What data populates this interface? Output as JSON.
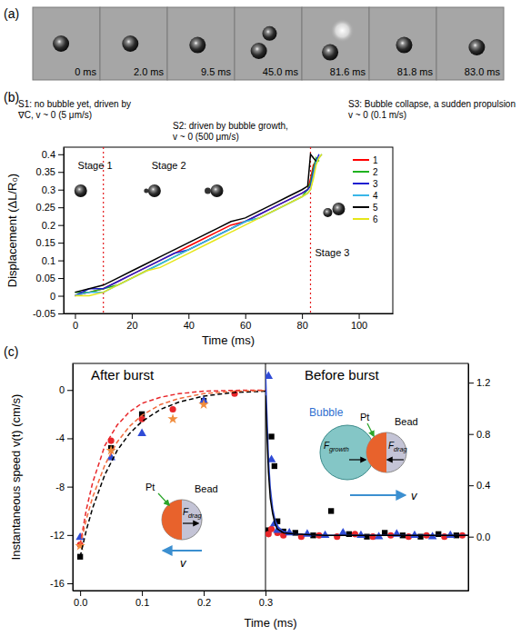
{
  "image_strip": {
    "panel_label": "(a)",
    "frames": [
      "0 ms",
      "2.0 ms",
      "9.5 ms",
      "45.0 ms",
      "81.6 ms",
      "81.8 ms",
      "83.0 ms"
    ]
  },
  "chart_data": [
    {
      "type": "line",
      "panel_label": "(b)",
      "x_label": "Time (ms)",
      "y_label": "Displacement (ΔL/R₀)",
      "x": [
        0,
        5,
        10,
        15,
        20,
        25,
        30,
        35,
        40,
        45,
        50,
        55,
        60,
        65,
        70,
        75,
        80,
        82,
        83,
        84,
        85,
        86,
        87
      ],
      "xlim": [
        -4,
        112
      ],
      "xticks": [
        0,
        20,
        40,
        60,
        80,
        100
      ],
      "ylim": [
        -0.05,
        0.42
      ],
      "yticks": [
        -0.05,
        0,
        0.05,
        0.1,
        0.15,
        0.2,
        0.25,
        0.3,
        0.35,
        0.4
      ],
      "legend": "upper right",
      "series": [
        {
          "name": "1",
          "color": "#ff0000",
          "values": [
            0,
            0.01,
            0.02,
            0.04,
            0.06,
            0.08,
            0.1,
            0.12,
            0.14,
            0.16,
            0.18,
            0.2,
            0.21,
            0.23,
            0.25,
            0.27,
            0.29,
            0.3,
            0.33,
            0.37,
            0.38,
            null,
            null
          ]
        },
        {
          "name": "2",
          "color": "#1fb21f",
          "values": [
            0.01,
            0.01,
            0.02,
            0.03,
            0.05,
            0.07,
            0.09,
            0.11,
            0.13,
            0.15,
            0.17,
            0.19,
            0.21,
            0.22,
            0.24,
            0.26,
            0.28,
            0.3,
            0.32,
            0.36,
            0.39,
            0.38,
            null
          ]
        },
        {
          "name": "3",
          "color": "#1f1fd0",
          "values": [
            0,
            0.02,
            0.02,
            0.04,
            0.06,
            0.08,
            0.1,
            0.12,
            0.13,
            0.15,
            0.17,
            0.19,
            0.21,
            0.23,
            0.25,
            0.27,
            0.29,
            0.3,
            0.31,
            0.35,
            0.38,
            0.4,
            null
          ]
        },
        {
          "name": "4",
          "color": "#39b6e8",
          "values": [
            0,
            0.01,
            0.01,
            0.03,
            0.05,
            0.07,
            0.09,
            0.11,
            0.13,
            0.15,
            0.17,
            0.19,
            0.21,
            0.22,
            0.24,
            0.26,
            0.28,
            0.29,
            0.3,
            0.34,
            0.38,
            0.39,
            0.4
          ]
        },
        {
          "name": "5",
          "color": "#000000",
          "values": [
            0.01,
            0.02,
            0.03,
            0.05,
            0.07,
            0.09,
            0.11,
            0.13,
            0.15,
            0.17,
            0.19,
            0.21,
            0.22,
            0.24,
            0.26,
            0.28,
            0.3,
            0.31,
            0.4,
            0.39,
            0.38,
            null,
            null
          ]
        },
        {
          "name": "6",
          "color": "#e6e619",
          "values": [
            0,
            0,
            0.01,
            0.03,
            0.05,
            0.07,
            0.08,
            0.1,
            0.12,
            0.14,
            0.16,
            0.18,
            0.2,
            0.22,
            0.24,
            0.26,
            0.28,
            0.29,
            0.3,
            0.33,
            0.37,
            0.39,
            0.4
          ]
        }
      ],
      "stage_lines": [
        10,
        83
      ],
      "stages": [
        {
          "label": "Stage 1",
          "note": [
            "S1: no bubble yet, driven by",
            "∇C, v ~ 0 (5 μm/s)"
          ]
        },
        {
          "label": "Stage 2",
          "note": [
            "S2: driven by bubble growth,",
            "v ~ 0 (500 μm/s)"
          ]
        },
        {
          "label": "Stage 3",
          "note": [
            "S3: Bubble collapse, a sudden propulsion",
            "v ~ 0 (0.1 m/s)"
          ]
        }
      ]
    },
    {
      "type": "scatter",
      "panel_label": "(c)",
      "title": "After burst",
      "x_label": "Time (ms)",
      "y_label": "Instantaneous speed v(t) (cm/s)",
      "xlim": [
        -0.012,
        0.3
      ],
      "xticks": [
        {
          "value": 0,
          "label": "0.0"
        },
        0.1,
        0.2,
        0.3
      ],
      "ylim": [
        -16.6,
        2.2
      ],
      "yticks": [
        -16,
        -12,
        -8,
        -4,
        0
      ],
      "series": [
        {
          "color": "#000000",
          "marker": "square",
          "x": [
            0,
            0.05,
            0.1,
            0.2
          ],
          "values": [
            -13.8,
            -4.8,
            -2,
            -0.9
          ]
        },
        {
          "color": "#e8262a",
          "marker": "circle",
          "x": [
            0,
            0.05,
            0.1,
            0.15,
            0.25
          ],
          "values": [
            -12.8,
            -4.2,
            -2.4,
            -1.6,
            -0.3
          ]
        },
        {
          "color": "#2f4bd6",
          "marker": "triangle",
          "x": [
            0,
            0.05,
            0.1,
            0.2
          ],
          "values": [
            -12.2,
            -5.6,
            -3.6,
            -0.9
          ]
        },
        {
          "color": "#f08c3c",
          "marker": "star",
          "x": [
            0,
            0.05,
            0.15,
            0.2
          ],
          "values": [
            -12.9,
            -5,
            -2.4,
            -1.2
          ]
        },
        {
          "type": "line",
          "line_style": "dashed",
          "color": "#e8262a",
          "x": [
            0,
            0.01,
            0.02,
            0.04,
            0.06,
            0.08,
            0.1,
            0.13,
            0.16,
            0.2,
            0.25,
            0.3
          ],
          "values": [
            -12.8,
            -9.9,
            -7.7,
            -4.6,
            -2.9,
            -1.8,
            -1.1,
            -0.6,
            -0.3,
            -0.1,
            -0.03,
            -0.01
          ]
        },
        {
          "type": "line",
          "line_style": "dashed",
          "color": "#000000",
          "x": [
            0,
            0.01,
            0.02,
            0.04,
            0.06,
            0.08,
            0.1,
            0.13,
            0.16,
            0.2,
            0.25,
            0.3
          ],
          "values": [
            -13.8,
            -11.6,
            -9.8,
            -7,
            -5,
            -3.6,
            -2.6,
            -1.6,
            -1,
            -0.5,
            -0.2,
            -0.1
          ]
        },
        {
          "type": "line",
          "line_style": "dashed",
          "color": "#f06a3c",
          "x": [
            0,
            0.01,
            0.02,
            0.04,
            0.06,
            0.08,
            0.1,
            0.13,
            0.16,
            0.2,
            0.25,
            0.3
          ],
          "values": [
            -12.9,
            -10.7,
            -8.9,
            -6.2,
            -4.3,
            -3,
            -2.1,
            -1.2,
            -0.7,
            -0.3,
            -0.1,
            -0.04
          ]
        }
      ],
      "inset": {
        "pt": "Pt",
        "bead": "Bead",
        "force": {
          "text": "F",
          "sub": "drag"
        },
        "velocity": "v"
      }
    },
    {
      "type": "scatter",
      "title": "Before burst",
      "tick_labels": "y",
      "xlim": [
        0.3,
        0.64
      ],
      "ylim": [
        -0.42,
        1.35
      ],
      "yticks": [
        {
          "value": 0,
          "label": "0.0"
        },
        0.4,
        0.8,
        1.2
      ],
      "series": [
        {
          "color": "#000000",
          "marker": "square",
          "x": [
            0.305,
            0.31,
            0.315,
            0.32,
            0.33,
            0.35,
            0.38,
            0.41,
            0.44,
            0.47,
            0.5,
            0.53,
            0.56,
            0.59,
            0.62
          ],
          "values": [
            0.05,
            0.78,
            0.55,
            0.12,
            0.04,
            0.03,
            0.01,
            0.2,
            0.02,
            0,
            0.03,
            0.01,
            0,
            0.02,
            0.01
          ]
        },
        {
          "color": "#e8262a",
          "marker": "circle",
          "x": [
            0.305,
            0.31,
            0.32,
            0.33,
            0.36,
            0.39,
            0.42,
            0.45,
            0.48,
            0.51,
            0.54,
            0.57,
            0.6,
            0.63
          ],
          "values": [
            0.02,
            0.06,
            0.03,
            0.01,
            0,
            0.01,
            0,
            0.02,
            0,
            0.01,
            0,
            0.01,
            0,
            0.01
          ]
        },
        {
          "color": "#2f4bd6",
          "marker": "triangle",
          "x": [
            0.305,
            0.31,
            0.315,
            0.32,
            0.34,
            0.37,
            0.4,
            0.43,
            0.46,
            0.49,
            0.52,
            0.55,
            0.58,
            0.61
          ],
          "values": [
            1.25,
            0.6,
            0.1,
            0.05,
            0.03,
            0.02,
            0.01,
            0.03,
            0.01,
            0,
            0.02,
            0.01,
            0,
            0.01
          ]
        },
        {
          "type": "line",
          "line_style": "solid",
          "color": "#2f4bd6",
          "x": [
            0.3,
            0.302,
            0.305,
            0.308,
            0.312,
            0.316,
            0.32,
            0.33,
            0.35,
            0.4,
            0.5,
            0.64
          ],
          "values": [
            1.3,
            1,
            0.6,
            0.38,
            0.22,
            0.13,
            0.08,
            0.04,
            0.02,
            0.01,
            0.01,
            0.01
          ]
        },
        {
          "type": "line",
          "line_style": "solid",
          "color": "#000000",
          "x": [
            0.3,
            0.302,
            0.305,
            0.308,
            0.312,
            0.316,
            0.32,
            0.33,
            0.35,
            0.4,
            0.5,
            0.64
          ],
          "values": [
            1.1,
            0.85,
            0.5,
            0.3,
            0.18,
            0.1,
            0.06,
            0.03,
            0.02,
            0.01,
            0.01,
            0.01
          ]
        }
      ],
      "inset": {
        "bubble": "Bubble",
        "pt": "Pt",
        "bead": "Bead",
        "growth": {
          "text": "F",
          "sub": "growth"
        },
        "drag": {
          "text": "F",
          "sub": "drag"
        },
        "velocity": "v"
      }
    }
  ]
}
